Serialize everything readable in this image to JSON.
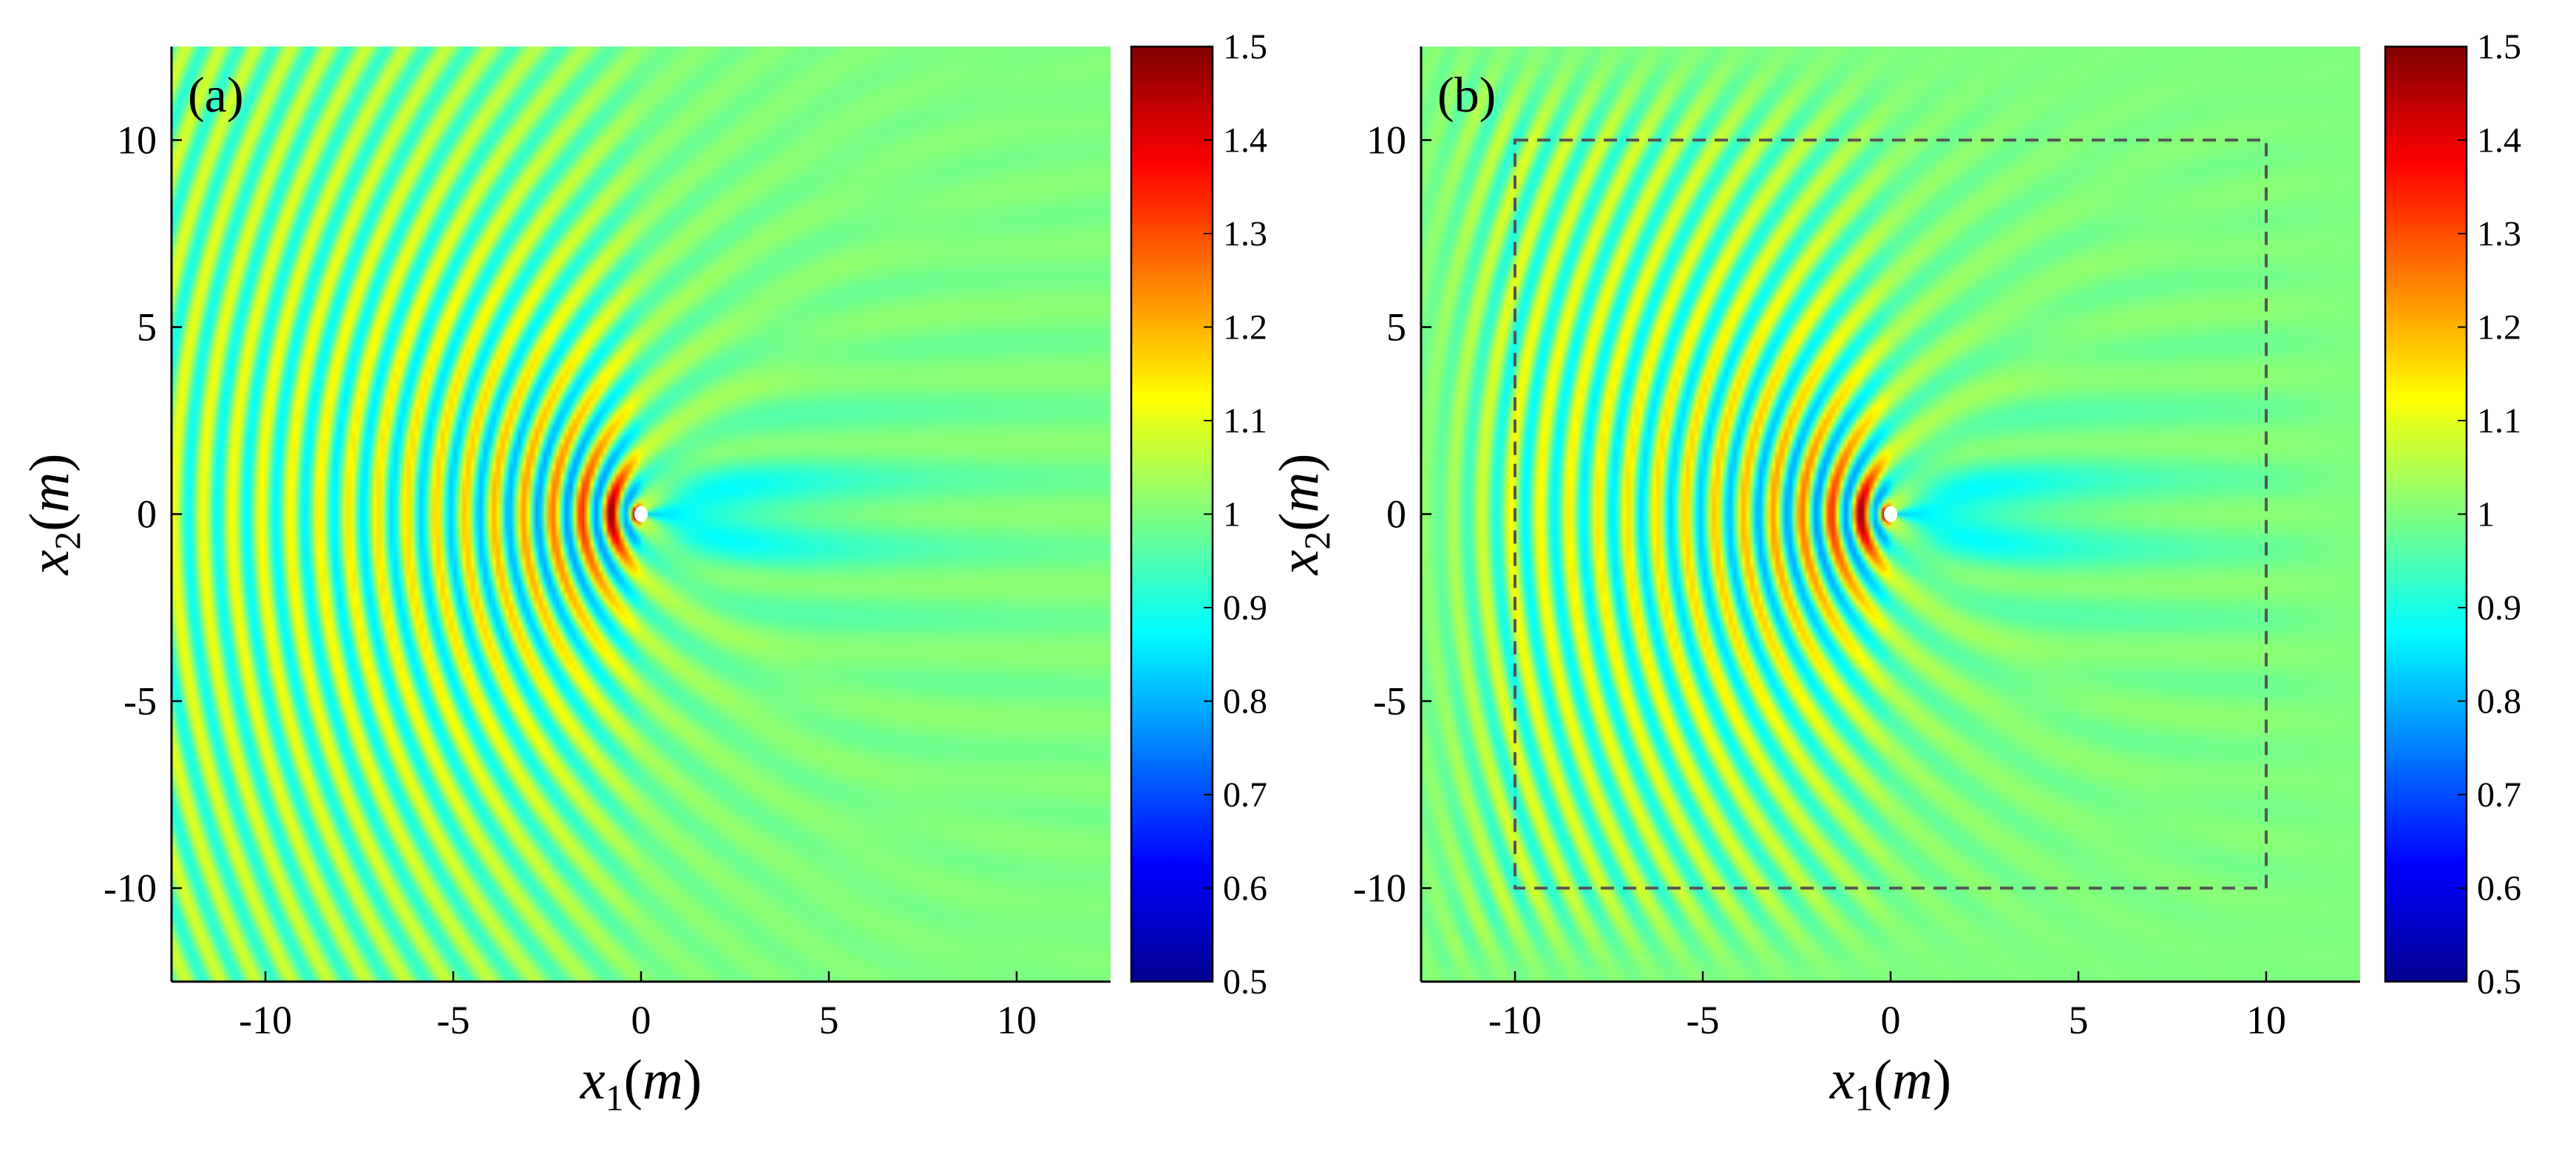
{
  "chart_data": [
    {
      "type": "heatmap",
      "panel_label": "(a)",
      "xlabel": {
        "var": "x",
        "sub": "1",
        "unit": "m"
      },
      "ylabel": {
        "var": "x",
        "sub": "2",
        "unit": "m"
      },
      "xlim": [
        -12.5,
        12.5
      ],
      "ylim": [
        -12.5,
        12.5
      ],
      "xticks": [
        -10,
        -5,
        0,
        5,
        10
      ],
      "yticks": [
        10,
        5,
        0,
        -5,
        -10
      ],
      "xtick_labels": [
        "-10",
        "-5",
        "0",
        "5",
        "10"
      ],
      "ytick_labels": [
        "10",
        "5",
        "0",
        "-5",
        "-10"
      ],
      "field": "normalized wave amplitude scattered by point obstacle at origin (incident wave from left)",
      "obstacle": {
        "x": 0,
        "y": 0
      },
      "colorbar": {
        "range": [
          0.5,
          1.5
        ],
        "ticks": [
          1.5,
          1.4,
          1.3,
          1.2,
          1.1,
          1,
          0.9,
          0.8,
          0.7,
          0.6,
          0.5
        ],
        "tick_labels": [
          "1.5",
          "1.4",
          "1.3",
          "1.2",
          "1.1",
          "1",
          "0.9",
          "0.8",
          "0.7",
          "0.6",
          "0.5"
        ],
        "colormap": "jet"
      },
      "dashed_box": null
    },
    {
      "type": "heatmap",
      "panel_label": "(b)",
      "xlabel": {
        "var": "x",
        "sub": "1",
        "unit": "m"
      },
      "ylabel": {
        "var": "x",
        "sub": "2",
        "unit": "m"
      },
      "xlim": [
        -12.5,
        12.5
      ],
      "ylim": [
        -12.5,
        12.5
      ],
      "xticks": [
        -10,
        -5,
        0,
        5,
        10
      ],
      "yticks": [
        10,
        5,
        0,
        -5,
        -10
      ],
      "xtick_labels": [
        "-10",
        "-5",
        "0",
        "5",
        "10"
      ],
      "ytick_labels": [
        "10",
        "5",
        "0",
        "-5",
        "-10"
      ],
      "field": "normalized wave amplitude scattered by point obstacle at origin (incident wave from left)",
      "obstacle": {
        "x": 0,
        "y": 0
      },
      "colorbar": {
        "range": [
          0.5,
          1.5
        ],
        "ticks": [
          1.5,
          1.4,
          1.3,
          1.2,
          1.1,
          1,
          0.9,
          0.8,
          0.7,
          0.6,
          0.5
        ],
        "tick_labels": [
          "1.5",
          "1.4",
          "1.3",
          "1.2",
          "1.1",
          "1",
          "0.9",
          "0.8",
          "0.7",
          "0.6",
          "0.5"
        ],
        "colormap": "jet"
      },
      "dashed_box": {
        "x": [
          -10,
          10
        ],
        "y": [
          -10,
          10
        ],
        "color": "#555555"
      }
    }
  ],
  "colors": {
    "jet_stops": [
      "#00008f",
      "#0000ff",
      "#00ffff",
      "#ffff00",
      "#ff0000",
      "#800000"
    ],
    "background": "#ffffff",
    "axis": "#000000"
  }
}
